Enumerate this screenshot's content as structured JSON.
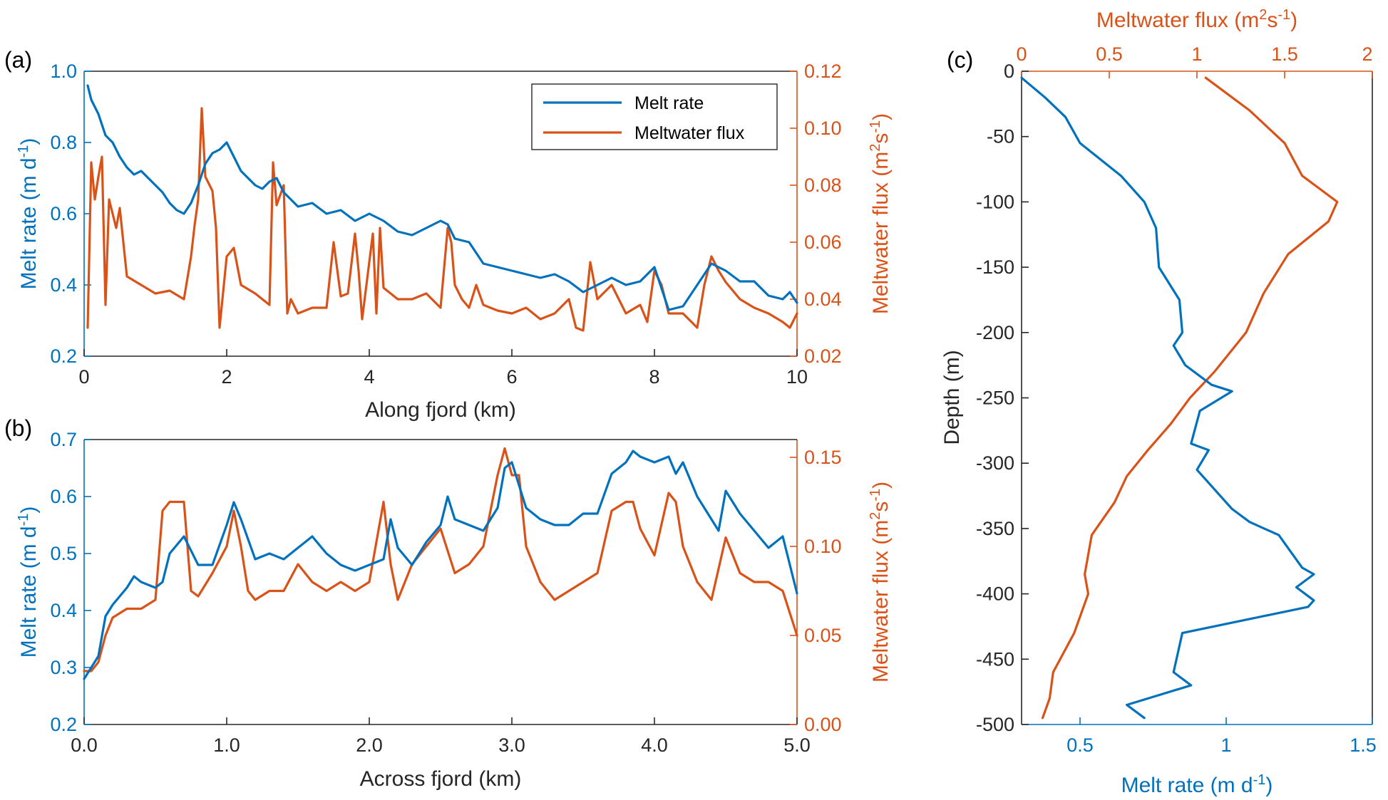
{
  "figure": {
    "colors": {
      "blue": "#0072BD",
      "orange": "#D95319",
      "black": "#262626"
    }
  },
  "chart_data": [
    {
      "panel": "(a)",
      "type": "line",
      "title": "",
      "xlabel": "Along fjord (km)",
      "ylabel_left": "Melt rate (m d",
      "ylabel_left_sup": "-1",
      "ylabel_left_end": ")",
      "ylabel_right": "Meltwater flux (m",
      "ylabel_right_sup1": "2",
      "ylabel_right_mid": "s",
      "ylabel_right_sup2": "-1",
      "ylabel_right_end": ")",
      "xlim": [
        0,
        10
      ],
      "ylim_left": [
        0.2,
        1.0
      ],
      "ylim_right": [
        0.02,
        0.12
      ],
      "x_ticks": [
        "0",
        "2",
        "4",
        "6",
        "8",
        "10"
      ],
      "y_left_ticks": [
        "0.2",
        "0.4",
        "0.6",
        "0.8",
        "1.0"
      ],
      "y_right_ticks": [
        "0.02",
        "0.04",
        "0.06",
        "0.08",
        "0.10",
        "0.12"
      ],
      "legend": {
        "position": "top-right",
        "entries": [
          "Melt rate",
          "Meltwater flux"
        ]
      },
      "series": [
        {
          "name": "Melt rate",
          "axis": "left",
          "color": "#0072BD",
          "x": [
            0.05,
            0.1,
            0.2,
            0.3,
            0.4,
            0.5,
            0.6,
            0.7,
            0.8,
            0.9,
            1.0,
            1.1,
            1.2,
            1.3,
            1.4,
            1.5,
            1.6,
            1.7,
            1.8,
            1.9,
            2.0,
            2.1,
            2.2,
            2.3,
            2.4,
            2.5,
            2.6,
            2.7,
            2.8,
            2.9,
            3.0,
            3.2,
            3.4,
            3.6,
            3.8,
            4.0,
            4.2,
            4.4,
            4.6,
            4.8,
            5.0,
            5.1,
            5.2,
            5.4,
            5.6,
            5.8,
            6.0,
            6.2,
            6.4,
            6.6,
            6.8,
            7.0,
            7.2,
            7.4,
            7.6,
            7.8,
            8.0,
            8.2,
            8.4,
            8.6,
            8.8,
            9.0,
            9.2,
            9.4,
            9.6,
            9.8,
            9.9,
            10.0
          ],
          "y": [
            0.96,
            0.92,
            0.88,
            0.82,
            0.8,
            0.76,
            0.73,
            0.71,
            0.72,
            0.7,
            0.68,
            0.66,
            0.63,
            0.61,
            0.6,
            0.63,
            0.68,
            0.74,
            0.77,
            0.78,
            0.8,
            0.76,
            0.72,
            0.7,
            0.68,
            0.67,
            0.69,
            0.7,
            0.66,
            0.64,
            0.62,
            0.63,
            0.6,
            0.61,
            0.58,
            0.6,
            0.58,
            0.55,
            0.54,
            0.56,
            0.58,
            0.57,
            0.53,
            0.52,
            0.46,
            0.45,
            0.44,
            0.43,
            0.42,
            0.43,
            0.41,
            0.38,
            0.4,
            0.42,
            0.4,
            0.41,
            0.45,
            0.33,
            0.34,
            0.4,
            0.46,
            0.44,
            0.41,
            0.41,
            0.37,
            0.36,
            0.38,
            0.35
          ]
        },
        {
          "name": "Meltwater flux",
          "axis": "right",
          "color": "#D95319",
          "x": [
            0.05,
            0.1,
            0.15,
            0.2,
            0.25,
            0.3,
            0.35,
            0.4,
            0.45,
            0.5,
            0.6,
            0.8,
            1.0,
            1.2,
            1.4,
            1.5,
            1.55,
            1.6,
            1.65,
            1.7,
            1.8,
            1.85,
            1.9,
            2.0,
            2.1,
            2.2,
            2.4,
            2.6,
            2.65,
            2.7,
            2.8,
            2.85,
            2.9,
            3.0,
            3.2,
            3.4,
            3.5,
            3.6,
            3.7,
            3.8,
            3.85,
            3.9,
            4.0,
            4.05,
            4.1,
            4.15,
            4.2,
            4.3,
            4.4,
            4.6,
            4.8,
            5.0,
            5.1,
            5.15,
            5.2,
            5.3,
            5.4,
            5.5,
            5.6,
            5.8,
            6.0,
            6.2,
            6.4,
            6.6,
            6.8,
            6.9,
            7.0,
            7.1,
            7.2,
            7.4,
            7.6,
            7.8,
            7.9,
            8.0,
            8.1,
            8.2,
            8.4,
            8.6,
            8.7,
            8.8,
            8.9,
            9.0,
            9.2,
            9.4,
            9.6,
            9.8,
            9.9,
            10.0
          ],
          "y": [
            0.03,
            0.088,
            0.075,
            0.083,
            0.09,
            0.038,
            0.075,
            0.07,
            0.065,
            0.072,
            0.048,
            0.045,
            0.042,
            0.043,
            0.04,
            0.055,
            0.066,
            0.075,
            0.107,
            0.083,
            0.078,
            0.065,
            0.03,
            0.055,
            0.058,
            0.045,
            0.042,
            0.038,
            0.088,
            0.073,
            0.08,
            0.035,
            0.04,
            0.035,
            0.037,
            0.037,
            0.06,
            0.041,
            0.042,
            0.063,
            0.05,
            0.033,
            0.053,
            0.063,
            0.035,
            0.065,
            0.044,
            0.042,
            0.04,
            0.04,
            0.042,
            0.037,
            0.065,
            0.06,
            0.045,
            0.04,
            0.037,
            0.045,
            0.038,
            0.036,
            0.035,
            0.037,
            0.033,
            0.035,
            0.04,
            0.03,
            0.029,
            0.053,
            0.04,
            0.045,
            0.035,
            0.038,
            0.032,
            0.05,
            0.045,
            0.035,
            0.035,
            0.03,
            0.045,
            0.055,
            0.05,
            0.046,
            0.04,
            0.037,
            0.035,
            0.032,
            0.03,
            0.035
          ]
        }
      ]
    },
    {
      "panel": "(b)",
      "type": "line",
      "title": "",
      "xlabel": "Across fjord (km)",
      "ylabel_left": "Melt rate (m d",
      "ylabel_left_sup": "-1",
      "ylabel_left_end": ")",
      "ylabel_right": "Meltwater flux (m",
      "ylabel_right_sup1": "2",
      "ylabel_right_mid": "s",
      "ylabel_right_sup2": "-1",
      "ylabel_right_end": ")",
      "xlim": [
        0,
        5
      ],
      "ylim_left": [
        0.2,
        0.7
      ],
      "ylim_right": [
        0.0,
        0.16
      ],
      "x_ticks": [
        "0.0",
        "1.0",
        "2.0",
        "3.0",
        "4.0",
        "5.0"
      ],
      "y_left_ticks": [
        "0.2",
        "0.3",
        "0.4",
        "0.5",
        "0.6",
        "0.7"
      ],
      "y_right_ticks": [
        "0.00",
        "0.05",
        "0.10",
        "0.15"
      ],
      "series": [
        {
          "name": "Melt rate",
          "axis": "left",
          "color": "#0072BD",
          "x": [
            0.0,
            0.05,
            0.1,
            0.15,
            0.2,
            0.3,
            0.35,
            0.4,
            0.5,
            0.55,
            0.6,
            0.7,
            0.8,
            0.9,
            1.0,
            1.05,
            1.1,
            1.2,
            1.3,
            1.4,
            1.5,
            1.6,
            1.7,
            1.8,
            1.9,
            2.0,
            2.1,
            2.15,
            2.2,
            2.3,
            2.4,
            2.5,
            2.55,
            2.6,
            2.7,
            2.8,
            2.9,
            2.95,
            3.0,
            3.05,
            3.1,
            3.2,
            3.3,
            3.4,
            3.5,
            3.6,
            3.7,
            3.8,
            3.85,
            3.9,
            4.0,
            4.1,
            4.15,
            4.2,
            4.3,
            4.4,
            4.45,
            4.5,
            4.6,
            4.7,
            4.8,
            4.9,
            5.0
          ],
          "y": [
            0.28,
            0.3,
            0.32,
            0.39,
            0.41,
            0.44,
            0.46,
            0.45,
            0.44,
            0.45,
            0.5,
            0.53,
            0.48,
            0.48,
            0.55,
            0.59,
            0.56,
            0.49,
            0.5,
            0.49,
            0.51,
            0.53,
            0.5,
            0.48,
            0.47,
            0.48,
            0.49,
            0.56,
            0.51,
            0.48,
            0.52,
            0.55,
            0.6,
            0.56,
            0.55,
            0.54,
            0.58,
            0.65,
            0.66,
            0.62,
            0.58,
            0.56,
            0.55,
            0.55,
            0.57,
            0.57,
            0.64,
            0.66,
            0.68,
            0.67,
            0.66,
            0.67,
            0.64,
            0.66,
            0.6,
            0.56,
            0.54,
            0.61,
            0.57,
            0.54,
            0.51,
            0.53,
            0.43
          ]
        },
        {
          "name": "Meltwater flux",
          "axis": "right",
          "color": "#D95319",
          "x": [
            0.0,
            0.05,
            0.1,
            0.15,
            0.2,
            0.3,
            0.4,
            0.5,
            0.55,
            0.6,
            0.65,
            0.7,
            0.75,
            0.8,
            0.9,
            1.0,
            1.05,
            1.1,
            1.15,
            1.2,
            1.3,
            1.4,
            1.5,
            1.6,
            1.7,
            1.8,
            1.9,
            2.0,
            2.1,
            2.15,
            2.2,
            2.3,
            2.4,
            2.5,
            2.6,
            2.7,
            2.8,
            2.9,
            2.95,
            3.0,
            3.05,
            3.1,
            3.2,
            3.3,
            3.4,
            3.5,
            3.6,
            3.7,
            3.8,
            3.85,
            3.9,
            4.0,
            4.1,
            4.15,
            4.2,
            4.3,
            4.4,
            4.5,
            4.6,
            4.7,
            4.8,
            4.9,
            5.0
          ],
          "y": [
            0.03,
            0.03,
            0.035,
            0.05,
            0.06,
            0.065,
            0.065,
            0.07,
            0.12,
            0.125,
            0.125,
            0.125,
            0.075,
            0.072,
            0.085,
            0.1,
            0.12,
            0.1,
            0.075,
            0.07,
            0.075,
            0.075,
            0.09,
            0.08,
            0.075,
            0.08,
            0.075,
            0.08,
            0.125,
            0.09,
            0.07,
            0.09,
            0.1,
            0.11,
            0.085,
            0.09,
            0.1,
            0.14,
            0.155,
            0.14,
            0.14,
            0.1,
            0.08,
            0.07,
            0.075,
            0.08,
            0.085,
            0.12,
            0.125,
            0.125,
            0.11,
            0.095,
            0.13,
            0.125,
            0.1,
            0.08,
            0.07,
            0.105,
            0.085,
            0.08,
            0.08,
            0.075,
            0.05
          ]
        }
      ]
    },
    {
      "panel": "(c)",
      "type": "line",
      "title": "",
      "xlabel_bottom": "Melt rate (m d",
      "xlabel_bottom_sup": "-1",
      "xlabel_bottom_end": ")",
      "xlabel_top": "Meltwater flux (m",
      "xlabel_top_sup1": "2",
      "xlabel_top_mid": "s",
      "xlabel_top_sup2": "-1",
      "xlabel_top_end": ")",
      "ylabel": "Depth (m)",
      "xlim_bottom": [
        0.3,
        1.5
      ],
      "xlim_top": [
        0,
        2
      ],
      "ylim": [
        -500,
        0
      ],
      "x_bottom_ticks": [
        "0.5",
        "1",
        "1.5"
      ],
      "x_top_ticks": [
        "0",
        "0.5",
        "1",
        "1.5",
        "2"
      ],
      "y_ticks": [
        "0",
        "-50",
        "-100",
        "-150",
        "-200",
        "-250",
        "-300",
        "-350",
        "-400",
        "-450",
        "-500"
      ],
      "series": [
        {
          "name": "Melt rate",
          "axis": "bottom",
          "color": "#0072BD",
          "depth": [
            -5,
            -20,
            -35,
            -55,
            -80,
            -100,
            -120,
            -150,
            -175,
            -200,
            -210,
            -225,
            -240,
            -245,
            -260,
            -285,
            -290,
            -305,
            -335,
            -345,
            -355,
            -380,
            -385,
            -395,
            -405,
            -410,
            -430,
            -460,
            -470,
            -485,
            -495
          ],
          "value": [
            0.3,
            0.38,
            0.45,
            0.5,
            0.64,
            0.72,
            0.76,
            0.77,
            0.84,
            0.85,
            0.82,
            0.86,
            0.95,
            1.02,
            0.91,
            0.88,
            0.94,
            0.9,
            1.02,
            1.08,
            1.18,
            1.26,
            1.3,
            1.24,
            1.3,
            1.28,
            0.85,
            0.82,
            0.88,
            0.66,
            0.72
          ]
        },
        {
          "name": "Meltwater flux",
          "axis": "top",
          "color": "#D95319",
          "depth": [
            -5,
            -30,
            -55,
            -80,
            -100,
            -115,
            -140,
            -170,
            -200,
            -230,
            -250,
            -270,
            -290,
            -310,
            -330,
            -355,
            -385,
            -400,
            -430,
            -460,
            -480,
            -495
          ],
          "value": [
            1.05,
            1.3,
            1.5,
            1.6,
            1.8,
            1.75,
            1.52,
            1.38,
            1.28,
            1.1,
            0.96,
            0.85,
            0.72,
            0.6,
            0.53,
            0.4,
            0.36,
            0.38,
            0.3,
            0.18,
            0.16,
            0.12
          ]
        }
      ]
    }
  ]
}
